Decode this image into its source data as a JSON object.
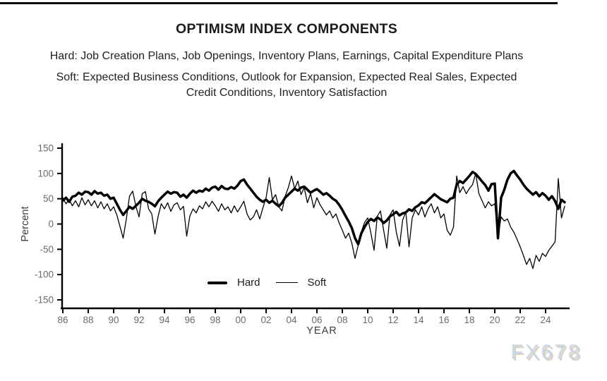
{
  "header": {
    "title": "OPTIMISM INDEX COMPONENTS",
    "hard_line": "Hard: Job Creation Plans, Job Openings, Inventory Plans, Earnings, Capital Expenditure Plans",
    "soft_line_1": "Soft: Expected Business Conditions, Outlook for Expansion, Expected Real Sales, Expected",
    "soft_line_2": "Credit Conditions, Inventory Satisfaction"
  },
  "watermark": "FX678",
  "chart_data": {
    "type": "line",
    "title": "OPTIMISM INDEX COMPONENTS",
    "xlabel": "YEAR",
    "ylabel": "Percent",
    "xlim": [
      1985.8,
      2025.9
    ],
    "ylim": [
      -150,
      150
    ],
    "grid": false,
    "axis_color": "#000000",
    "tick_label_color": "#6b6b6b",
    "axis_title_color": "#3c3c3c",
    "y_ticks": [
      150,
      100,
      50,
      0,
      -50,
      -100,
      -150
    ],
    "x_tick_years": [
      1986,
      1988,
      1990,
      1992,
      1994,
      1996,
      1998,
      2000,
      2002,
      2004,
      2006,
      2008,
      2010,
      2012,
      2014,
      2016,
      2018,
      2020,
      2022,
      2024
    ],
    "x_tick_labels": [
      "86",
      "88",
      "90",
      "92",
      "94",
      "96",
      "98",
      "00",
      "02",
      "04",
      "06",
      "08",
      "10",
      "12",
      "14",
      "16",
      "18",
      "20",
      "22",
      "24"
    ],
    "legend": {
      "position": "inside-bottom-center",
      "entries": [
        "Hard",
        "Soft"
      ]
    },
    "series": [
      {
        "name": "Hard",
        "color": "#000000",
        "line_width": 3.5,
        "x_start": 1986.0,
        "x_step": 0.25,
        "values": [
          46,
          52,
          44,
          54,
          56,
          62,
          58,
          64,
          63,
          58,
          65,
          60,
          62,
          56,
          58,
          50,
          52,
          40,
          28,
          18,
          26,
          34,
          30,
          36,
          42,
          50,
          46,
          44,
          40,
          35,
          45,
          52,
          58,
          64,
          60,
          63,
          62,
          54,
          58,
          52,
          60,
          66,
          62,
          66,
          64,
          70,
          66,
          72,
          74,
          68,
          75,
          70,
          69,
          73,
          70,
          76,
          85,
          88,
          78,
          70,
          62,
          54,
          48,
          44,
          48,
          42,
          46,
          40,
          35,
          42,
          52,
          58,
          64,
          70,
          66,
          72,
          74,
          68,
          62,
          66,
          69,
          64,
          58,
          61,
          56,
          50,
          46,
          38,
          28,
          16,
          5,
          -8,
          -28,
          -40,
          -18,
          -6,
          4,
          10,
          6,
          13,
          9,
          2,
          7,
          15,
          19,
          24,
          17,
          21,
          23,
          29,
          26,
          33,
          37,
          43,
          41,
          47,
          53,
          59,
          54,
          49,
          46,
          43,
          50,
          52,
          78,
          85,
          81,
          88,
          95,
          103,
          99,
          92,
          84,
          77,
          66,
          79,
          80,
          -28,
          52,
          68,
          88,
          100,
          105,
          96,
          88,
          78,
          70,
          64,
          58,
          63,
          55,
          61,
          56,
          48,
          55,
          45,
          30,
          48,
          43
        ]
      },
      {
        "name": "Soft",
        "color": "#000000",
        "line_width": 1.3,
        "x_start": 1986.0,
        "x_step": 0.25,
        "values": [
          52,
          40,
          48,
          36,
          46,
          34,
          52,
          38,
          48,
          36,
          46,
          32,
          44,
          30,
          40,
          26,
          34,
          18,
          -5,
          -28,
          10,
          55,
          65,
          35,
          14,
          60,
          64,
          30,
          20,
          -20,
          15,
          40,
          30,
          42,
          25,
          38,
          42,
          28,
          35,
          -24,
          16,
          30,
          22,
          36,
          30,
          44,
          34,
          45,
          36,
          25,
          40,
          28,
          34,
          22,
          36,
          24,
          34,
          45,
          20,
          8,
          14,
          28,
          10,
          32,
          52,
          92,
          48,
          58,
          34,
          26,
          55,
          72,
          95,
          70,
          85,
          58,
          72,
          42,
          60,
          32,
          52,
          38,
          28,
          18,
          26,
          12,
          20,
          2,
          -12,
          -28,
          -18,
          -38,
          -68,
          -42,
          -15,
          3,
          12,
          -18,
          -52,
          15,
          26,
          -12,
          -48,
          18,
          28,
          -16,
          -44,
          8,
          24,
          -45,
          12,
          28,
          18,
          34,
          14,
          30,
          40,
          22,
          34,
          12,
          20,
          -12,
          -22,
          -6,
          95,
          62,
          74,
          60,
          70,
          78,
          100,
          60,
          46,
          32,
          44,
          36,
          40,
          -25,
          14,
          6,
          10,
          -6,
          -16,
          -30,
          -45,
          -62,
          -80,
          -68,
          -88,
          -62,
          -74,
          -58,
          -64,
          -52,
          -44,
          -35,
          90,
          12,
          35
        ]
      }
    ]
  }
}
